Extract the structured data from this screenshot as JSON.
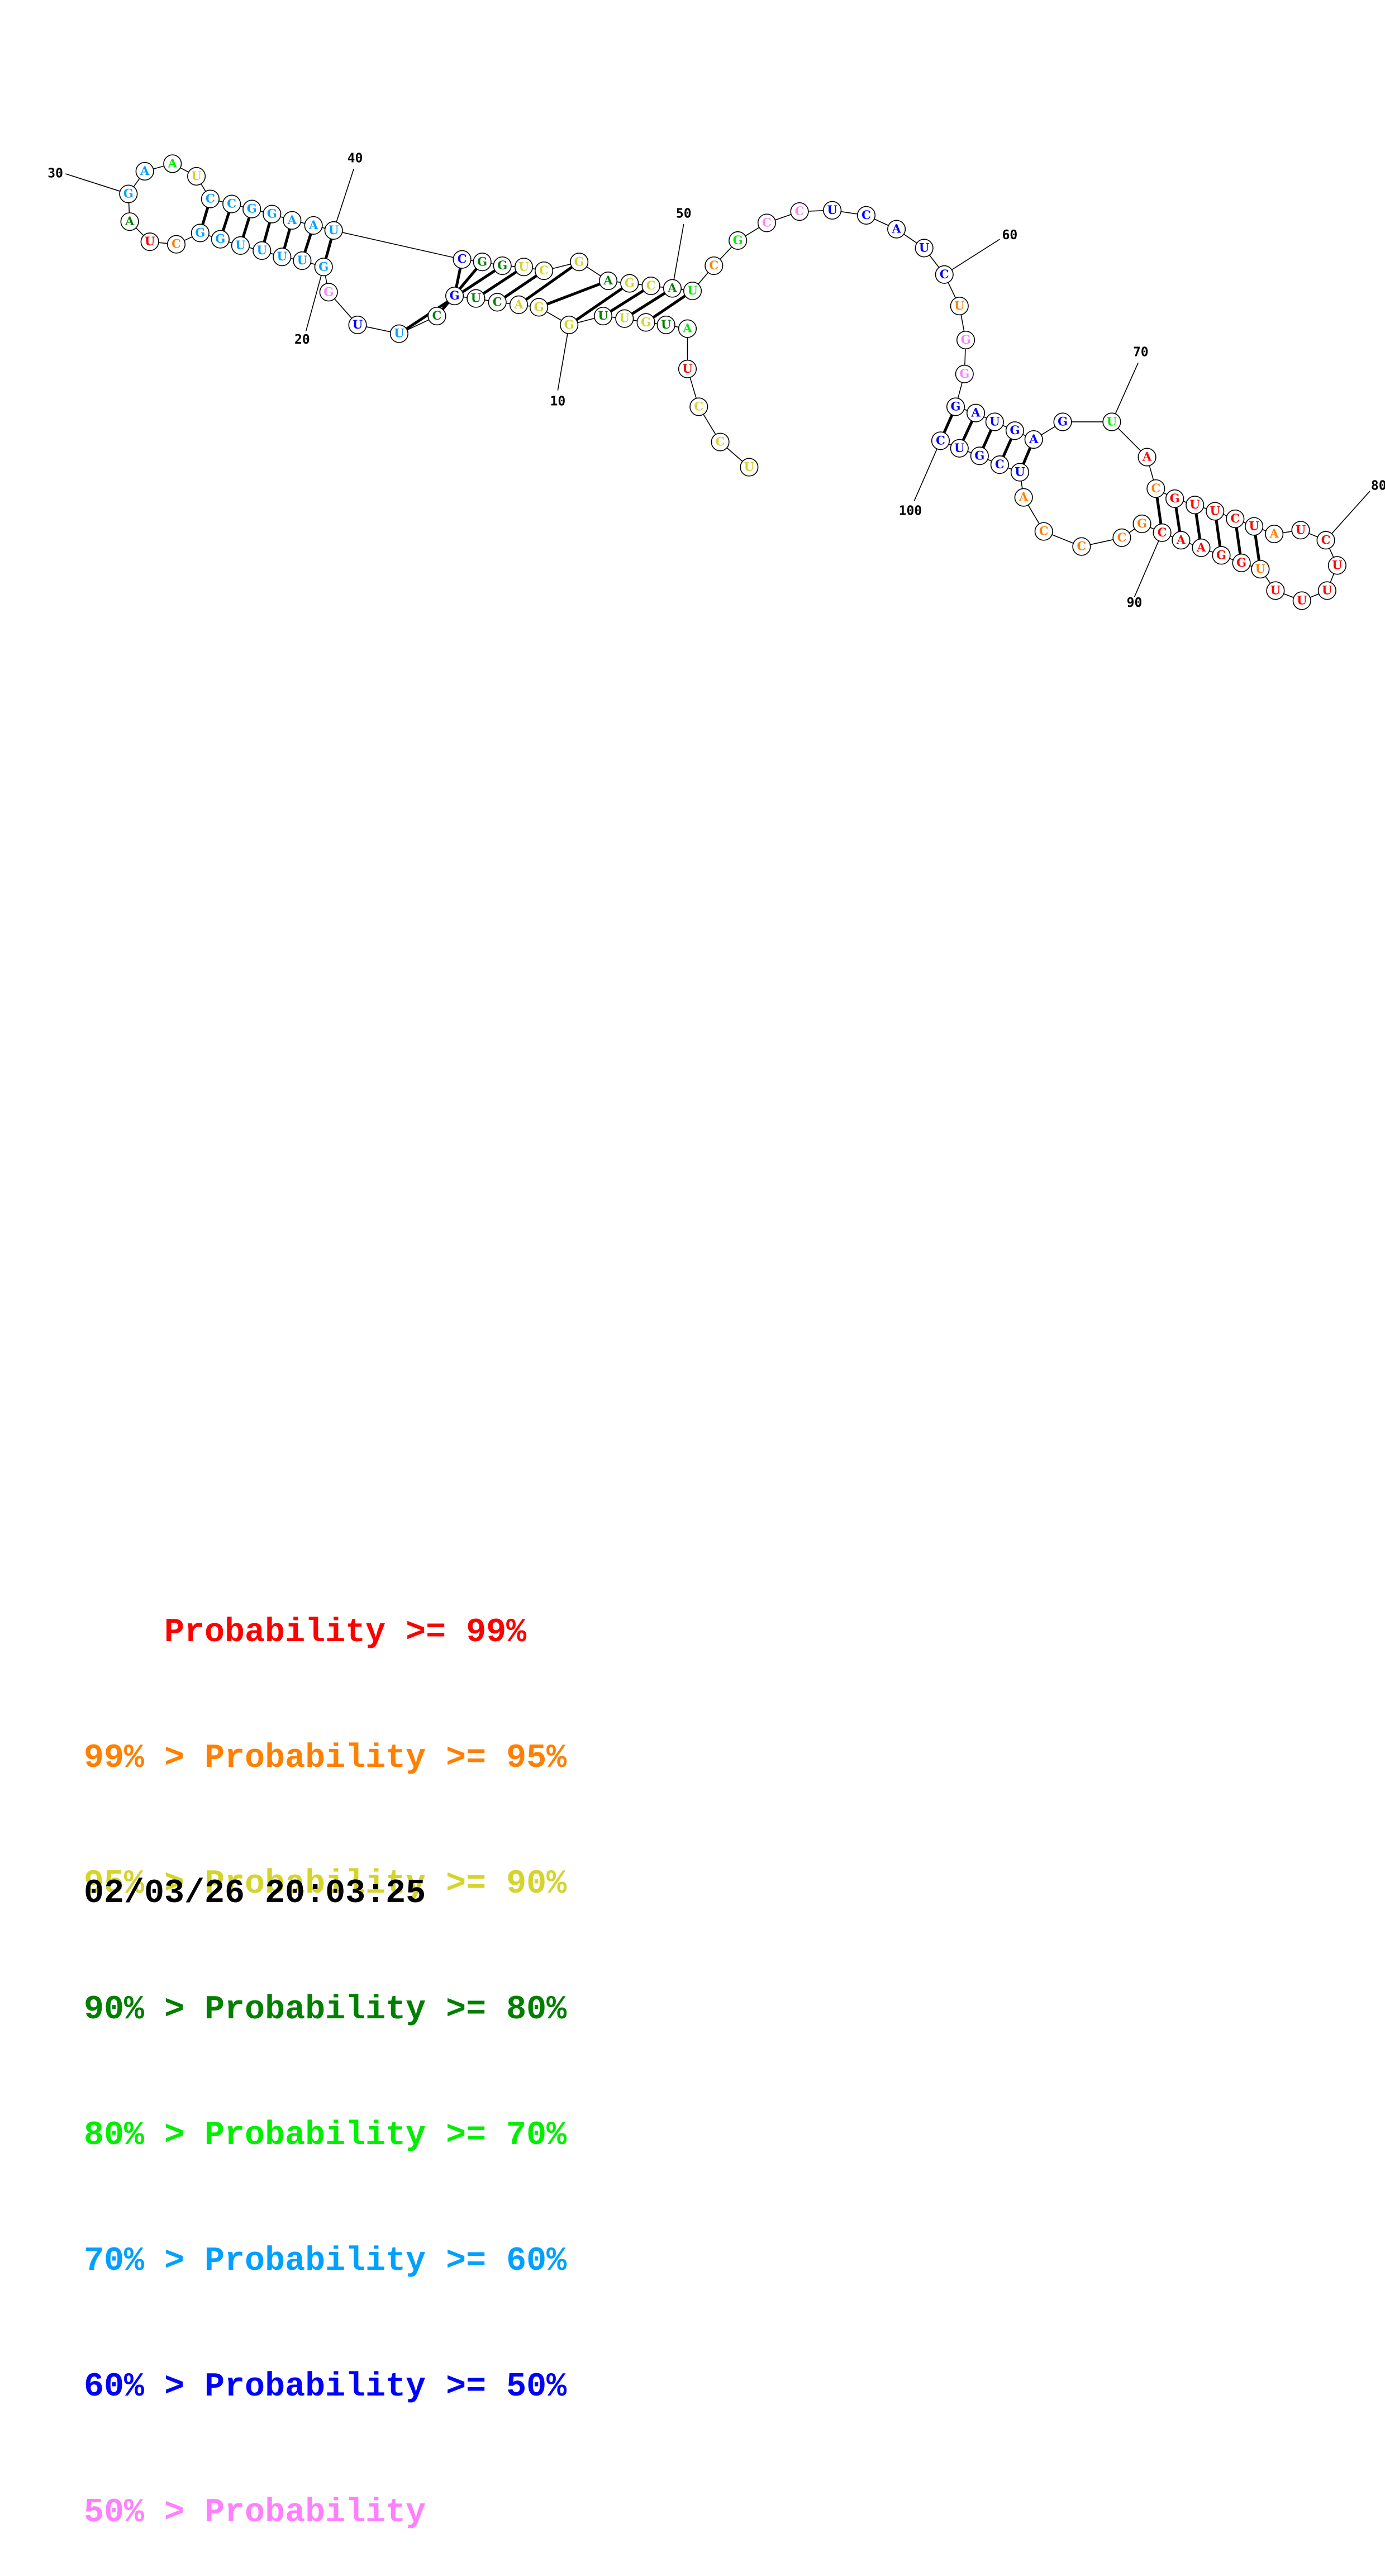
{
  "colors": {
    "p99": "#ff0000",
    "p95": "#ff8000",
    "p90": "#d4d42a",
    "p80": "#007f00",
    "p70": "#00ee00",
    "p60": "#00a0ff",
    "p50": "#0000ff",
    "plow": "#ff80ff"
  },
  "diagram": {
    "position_labels": [
      "10",
      "20",
      "30",
      "40",
      "50",
      "60",
      "70",
      "80",
      "90",
      "100"
    ],
    "nucleotides": [
      {
        "n": 1,
        "base": "U",
        "level": "p90"
      },
      {
        "n": 2,
        "base": "C",
        "level": "p90"
      },
      {
        "n": 3,
        "base": "C",
        "level": "p90"
      },
      {
        "n": 4,
        "base": "U",
        "level": "p99"
      },
      {
        "n": 5,
        "base": "A",
        "level": "p70"
      },
      {
        "n": 6,
        "base": "U",
        "level": "p80"
      },
      {
        "n": 7,
        "base": "G",
        "level": "p90"
      },
      {
        "n": 8,
        "base": "U",
        "level": "p90"
      },
      {
        "n": 9,
        "base": "U",
        "level": "p80"
      },
      {
        "n": 10,
        "base": "G",
        "level": "p90"
      },
      {
        "n": 11,
        "base": "G",
        "level": "p90"
      },
      {
        "n": 12,
        "base": "A",
        "level": "p90"
      },
      {
        "n": 13,
        "base": "C",
        "level": "p80"
      },
      {
        "n": 14,
        "base": "U",
        "level": "p80"
      },
      {
        "n": 15,
        "base": "G",
        "level": "p50"
      },
      {
        "n": 16,
        "base": "C",
        "level": "p80"
      },
      {
        "n": 17,
        "base": "U",
        "level": "p60"
      },
      {
        "n": 18,
        "base": "U",
        "level": "p50"
      },
      {
        "n": 19,
        "base": "G",
        "level": "plow"
      },
      {
        "n": 20,
        "base": "G",
        "level": "p60"
      },
      {
        "n": 21,
        "base": "U",
        "level": "p60"
      },
      {
        "n": 22,
        "base": "U",
        "level": "p60"
      },
      {
        "n": 23,
        "base": "U",
        "level": "p60"
      },
      {
        "n": 24,
        "base": "U",
        "level": "p60"
      },
      {
        "n": 25,
        "base": "G",
        "level": "p60"
      },
      {
        "n": 26,
        "base": "G",
        "level": "p60"
      },
      {
        "n": 27,
        "base": "C",
        "level": "p95"
      },
      {
        "n": 28,
        "base": "U",
        "level": "p99"
      },
      {
        "n": 29,
        "base": "A",
        "level": "p80"
      },
      {
        "n": 30,
        "base": "G",
        "level": "p60"
      },
      {
        "n": 31,
        "base": "A",
        "level": "p60"
      },
      {
        "n": 32,
        "base": "A",
        "level": "p70"
      },
      {
        "n": 33,
        "base": "U",
        "level": "p90"
      },
      {
        "n": 34,
        "base": "C",
        "level": "p60"
      },
      {
        "n": 35,
        "base": "C",
        "level": "p60"
      },
      {
        "n": 36,
        "base": "G",
        "level": "p60"
      },
      {
        "n": 37,
        "base": "G",
        "level": "p60"
      },
      {
        "n": 38,
        "base": "A",
        "level": "p60"
      },
      {
        "n": 39,
        "base": "A",
        "level": "p60"
      },
      {
        "n": 40,
        "base": "U",
        "level": "p60"
      },
      {
        "n": 41,
        "base": "C",
        "level": "p50"
      },
      {
        "n": 42,
        "base": "G",
        "level": "p80"
      },
      {
        "n": 43,
        "base": "G",
        "level": "p80"
      },
      {
        "n": 44,
        "base": "U",
        "level": "p90"
      },
      {
        "n": 45,
        "base": "C",
        "level": "p90"
      },
      {
        "n": 46,
        "base": "G",
        "level": "p90"
      },
      {
        "n": 47,
        "base": "A",
        "level": "p80"
      },
      {
        "n": 48,
        "base": "G",
        "level": "p90"
      },
      {
        "n": 49,
        "base": "C",
        "level": "p90"
      },
      {
        "n": 50,
        "base": "A",
        "level": "p80"
      },
      {
        "n": 51,
        "base": "U",
        "level": "p70"
      },
      {
        "n": 52,
        "base": "C",
        "level": "p95"
      },
      {
        "n": 53,
        "base": "G",
        "level": "p70"
      },
      {
        "n": 54,
        "base": "C",
        "level": "plow"
      },
      {
        "n": 55,
        "base": "C",
        "level": "plow"
      },
      {
        "n": 56,
        "base": "U",
        "level": "p50"
      },
      {
        "n": 57,
        "base": "C",
        "level": "p50"
      },
      {
        "n": 58,
        "base": "A",
        "level": "p50"
      },
      {
        "n": 59,
        "base": "U",
        "level": "p50"
      },
      {
        "n": 60,
        "base": "C",
        "level": "p50"
      },
      {
        "n": 61,
        "base": "U",
        "level": "p95"
      },
      {
        "n": 62,
        "base": "G",
        "level": "plow"
      },
      {
        "n": 63,
        "base": "G",
        "level": "plow"
      },
      {
        "n": 64,
        "base": "G",
        "level": "p50"
      },
      {
        "n": 65,
        "base": "A",
        "level": "p50"
      },
      {
        "n": 66,
        "base": "U",
        "level": "p50"
      },
      {
        "n": 67,
        "base": "G",
        "level": "p50"
      },
      {
        "n": 68,
        "base": "A",
        "level": "p50"
      },
      {
        "n": 69,
        "base": "G",
        "level": "p50"
      },
      {
        "n": 70,
        "base": "U",
        "level": "p70"
      },
      {
        "n": 71,
        "base": "A",
        "level": "p99"
      },
      {
        "n": 72,
        "base": "C",
        "level": "p95"
      },
      {
        "n": 73,
        "base": "G",
        "level": "p99"
      },
      {
        "n": 74,
        "base": "U",
        "level": "p99"
      },
      {
        "n": 75,
        "base": "U",
        "level": "p99"
      },
      {
        "n": 76,
        "base": "C",
        "level": "p99"
      },
      {
        "n": 77,
        "base": "U",
        "level": "p99"
      },
      {
        "n": 78,
        "base": "A",
        "level": "p95"
      },
      {
        "n": 79,
        "base": "U",
        "level": "p99"
      },
      {
        "n": 80,
        "base": "C",
        "level": "p99"
      },
      {
        "n": 81,
        "base": "U",
        "level": "p99"
      },
      {
        "n": 82,
        "base": "U",
        "level": "p99"
      },
      {
        "n": 83,
        "base": "U",
        "level": "p99"
      },
      {
        "n": 84,
        "base": "U",
        "level": "p99"
      },
      {
        "n": 85,
        "base": "U",
        "level": "p95"
      },
      {
        "n": 86,
        "base": "G",
        "level": "p99"
      },
      {
        "n": 87,
        "base": "G",
        "level": "p99"
      },
      {
        "n": 88,
        "base": "A",
        "level": "p99"
      },
      {
        "n": 89,
        "base": "A",
        "level": "p99"
      },
      {
        "n": 90,
        "base": "C",
        "level": "p99"
      },
      {
        "n": 91,
        "base": "G",
        "level": "p95"
      },
      {
        "n": 92,
        "base": "C",
        "level": "p95"
      },
      {
        "n": 93,
        "base": "C",
        "level": "p95"
      },
      {
        "n": 94,
        "base": "C",
        "level": "p95"
      },
      {
        "n": 95,
        "base": "A",
        "level": "p95"
      },
      {
        "n": 96,
        "base": "U",
        "level": "p50"
      },
      {
        "n": 97,
        "base": "C",
        "level": "p50"
      },
      {
        "n": 98,
        "base": "G",
        "level": "p50"
      },
      {
        "n": 99,
        "base": "U",
        "level": "p50"
      },
      {
        "n": 100,
        "base": "C",
        "level": "p50"
      }
    ],
    "pairs": [
      [
        7,
        51
      ],
      [
        8,
        50
      ],
      [
        9,
        49
      ],
      [
        10,
        48
      ],
      [
        11,
        47
      ],
      [
        12,
        46
      ],
      [
        13,
        45
      ],
      [
        14,
        44
      ],
      [
        15,
        41
      ],
      [
        16,
        42
      ],
      [
        17,
        43
      ],
      [
        20,
        40
      ],
      [
        21,
        39
      ],
      [
        22,
        38
      ],
      [
        23,
        37
      ],
      [
        24,
        36
      ],
      [
        25,
        35
      ],
      [
        26,
        34
      ],
      [
        64,
        100
      ],
      [
        65,
        99
      ],
      [
        66,
        98
      ],
      [
        67,
        97
      ],
      [
        68,
        96
      ],
      [
        72,
        90
      ],
      [
        73,
        89
      ],
      [
        74,
        88
      ],
      [
        75,
        87
      ],
      [
        76,
        86
      ],
      [
        77,
        85
      ]
    ]
  },
  "legend": [
    {
      "prefix": "    ",
      "text": "Probability >= 99%",
      "color": "p99"
    },
    {
      "prefix": "99% > ",
      "text": "Probability >= 95%",
      "color": "p95"
    },
    {
      "prefix": "95% > ",
      "text": "Probability >= 90%",
      "color": "p90"
    },
    {
      "prefix": "90% > ",
      "text": "Probability >= 80%",
      "color": "p80"
    },
    {
      "prefix": "80% > ",
      "text": "Probability >= 70%",
      "color": "p70"
    },
    {
      "prefix": "70% > ",
      "text": "Probability >= 60%",
      "color": "p60"
    },
    {
      "prefix": "60% > ",
      "text": "Probability >= 50%",
      "color": "p50"
    },
    {
      "prefix": "50% > ",
      "text": "Probability",
      "color": "plow"
    }
  ],
  "timestamp": "02/03/26 20:03:25"
}
